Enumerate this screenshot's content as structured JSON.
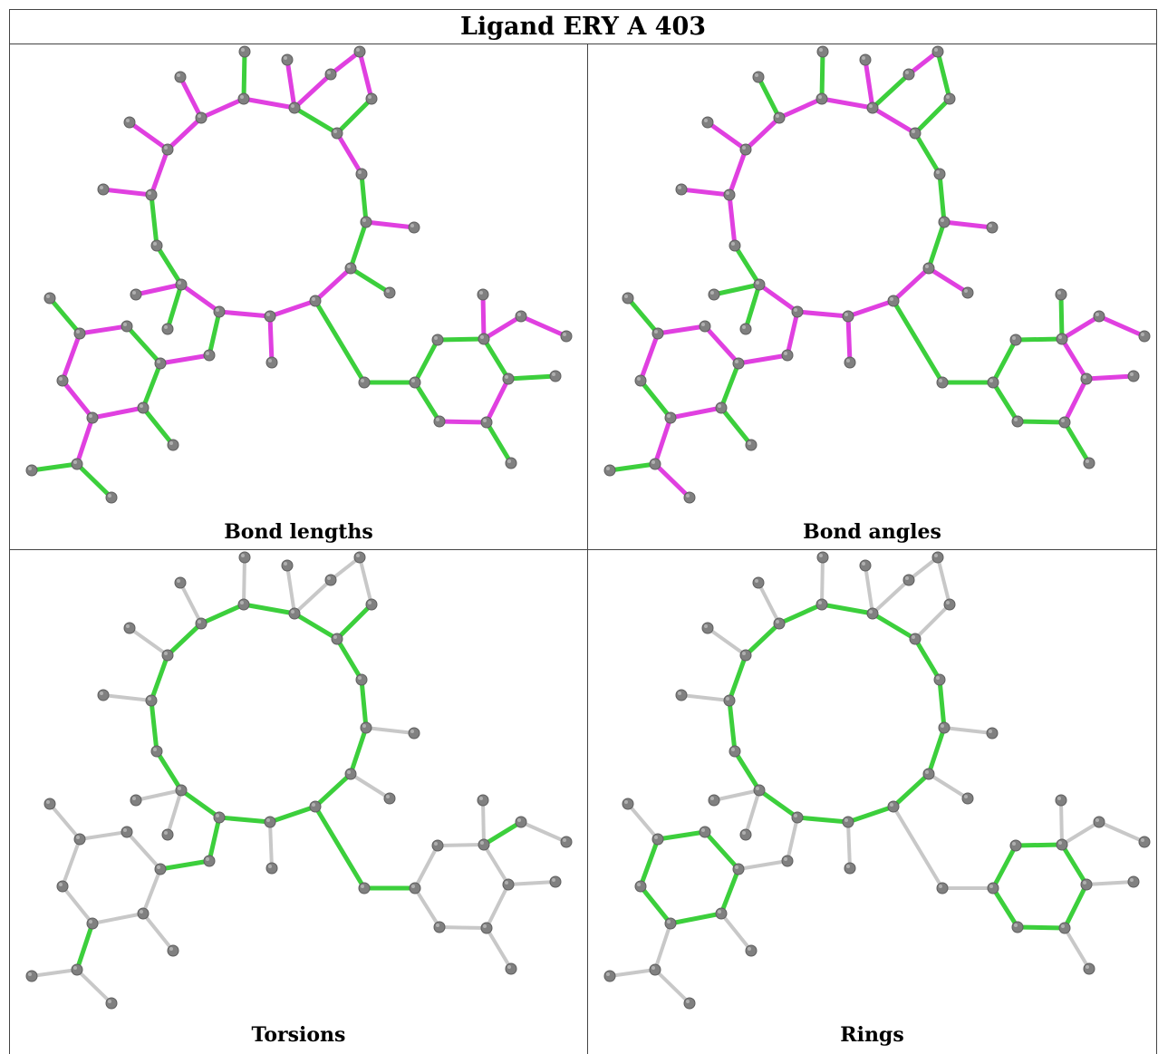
{
  "title": "Ligand ERY A 403",
  "colors": {
    "outlier": "#e040e0",
    "ok": "#3ccf3c",
    "neutral": "#c8c8c8",
    "atom": "#808080",
    "atom_highlight": "#b0b0b0"
  },
  "panels": [
    {
      "caption": "Bond lengths"
    },
    {
      "caption": "Bond angles"
    },
    {
      "caption": "Torsions"
    },
    {
      "caption": "Rings"
    }
  ]
}
